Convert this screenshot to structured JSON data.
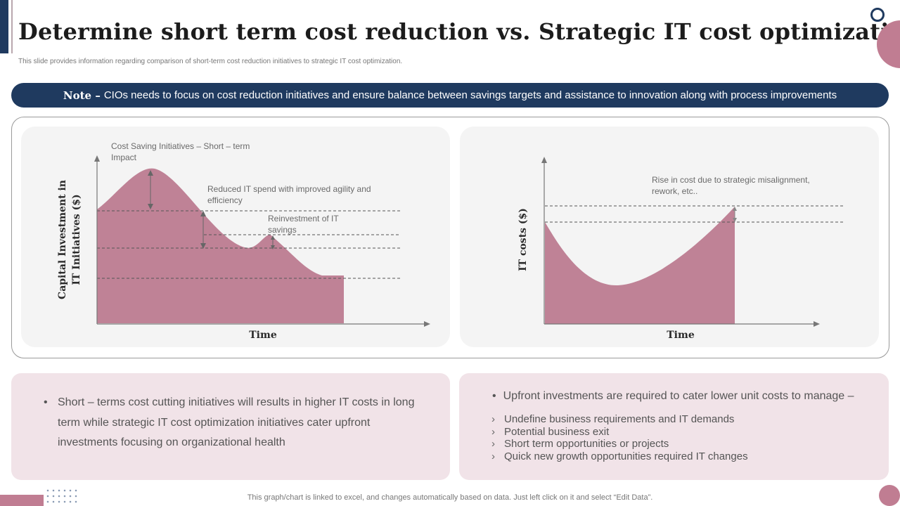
{
  "header": {
    "title": "Determine short term cost reduction vs. Strategic IT cost optimization",
    "subtitle": "This slide provides information regarding comparison of  short-term cost reduction initiatives to strategic IT cost optimization."
  },
  "note": {
    "label": "Note –",
    "text": "CIOs needs to focus on cost reduction initiatives and ensure balance between savings targets and assistance to innovation along with process improvements"
  },
  "left_chart": {
    "ylabel_line1": "Capital Investment in",
    "ylabel_line2": "IT Initiatives ($)",
    "xlabel": "Time",
    "annotations": {
      "cost_saving_line1": "Cost Saving Initiatives  – Short – term",
      "cost_saving_line2": "Impact",
      "reduced_spend_line1": "Reduced  IT  spend  with improved  agility  and",
      "reduced_spend_line2": "efficiency",
      "reinvestment_line1": "Reinvestment  of IT",
      "reinvestment_line2": "savings"
    }
  },
  "right_chart": {
    "ylabel": "IT costs ($)",
    "xlabel": "Time",
    "annotations": {
      "rise_line1": "Rise in cost due to strategic misalignment,",
      "rise_line2": "rework, etc.."
    }
  },
  "bottom_left": {
    "bullet": "•",
    "text": "Short – terms cost cutting initiatives will results in higher IT costs in long term while strategic IT cost optimization initiatives cater upfront investments focusing on organizational health"
  },
  "bottom_right": {
    "bullet": "•",
    "heading": "Upfront investments are required to cater lower unit costs to manage –",
    "chevron": "›",
    "items": [
      "Undefine business requirements and IT demands",
      "Potential business exit",
      "Short term opportunities or projects",
      "Quick new growth opportunities required IT changes"
    ]
  },
  "footer": {
    "text": "This graph/chart is linked to excel,  and changes automatically based on data. Just left click on it and select “Edit Data”."
  },
  "colors": {
    "navy": "#1f3a5f",
    "rose": "#c07d92",
    "area_fill": "#bf8296",
    "panel_bg": "#f4f4f4",
    "box_bg": "#f1e3e8"
  }
}
